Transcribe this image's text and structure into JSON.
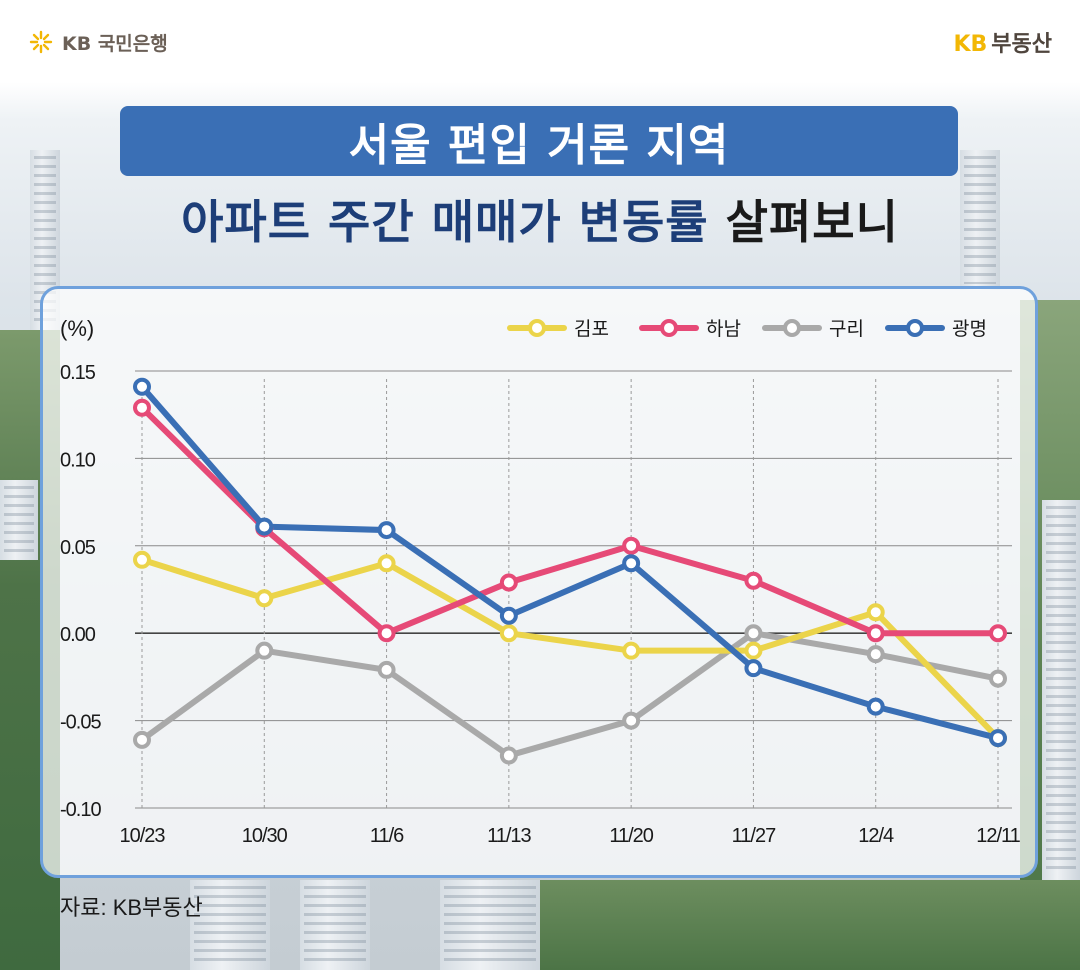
{
  "header": {
    "left_logo": "KB 국민은행",
    "right_logo_kb": "KB",
    "right_logo_text": "부동산"
  },
  "title": {
    "line1": "서울 편입 거론 지역",
    "line2_blue": "아파트 주간 매매가 변동률",
    "line2_dark": "살펴보니"
  },
  "source": "자료: KB부동산",
  "colors": {
    "title_bg": "#3a6fb5",
    "subtitle_blue": "#1d3e78",
    "panel_border": "#6fa1dc"
  },
  "chart_data": {
    "type": "line",
    "unit_label": "(%)",
    "categories": [
      "10/23",
      "10/30",
      "11/6",
      "11/13",
      "11/20",
      "11/27",
      "12/4",
      "12/11"
    ],
    "y_ticks": [
      "0.15",
      "0.10",
      "0.05",
      "0.00",
      "-0.05",
      "-0.10"
    ],
    "ylim": [
      -0.1,
      0.15
    ],
    "grid": "horizontal",
    "legend_position": "top-right",
    "series": [
      {
        "name": "김포",
        "color": "#ebd44a",
        "values": [
          0.042,
          0.02,
          0.04,
          0.0,
          -0.01,
          -0.01,
          0.012,
          -0.06
        ]
      },
      {
        "name": "하남",
        "color": "#e64a77",
        "values": [
          0.129,
          0.06,
          0.0,
          0.029,
          0.05,
          0.03,
          0.0,
          0.0
        ]
      },
      {
        "name": "구리",
        "color": "#a9a9a9",
        "values": [
          -0.061,
          -0.01,
          -0.021,
          -0.07,
          -0.05,
          0.0,
          -0.012,
          -0.026
        ]
      },
      {
        "name": "광명",
        "color": "#3a6fb5",
        "values": [
          0.141,
          0.061,
          0.059,
          0.01,
          0.04,
          -0.02,
          -0.042,
          -0.06
        ]
      }
    ]
  }
}
